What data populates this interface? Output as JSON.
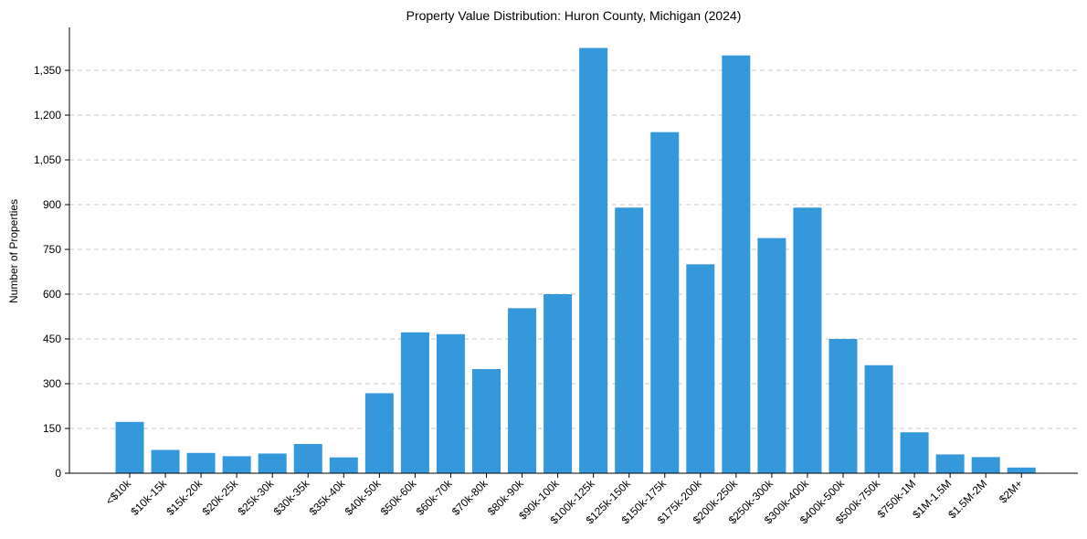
{
  "chart_data": {
    "type": "bar",
    "title": "Property Value Distribution: Huron County, Michigan (2024)",
    "xlabel": "",
    "ylabel": "Number of Properties",
    "ylim": [
      0,
      1500
    ],
    "yticks": [
      0,
      150,
      300,
      450,
      600,
      750,
      900,
      1050,
      1200,
      1350
    ],
    "ytick_labels": [
      "0",
      "150",
      "300",
      "450",
      "600",
      "750",
      "900",
      "1,050",
      "1,200",
      "1,350"
    ],
    "grid": "horizontal dashed",
    "bar_color": "#3498db",
    "categories": [
      "<$10k",
      "$10k-15k",
      "$15k-20k",
      "$20k-25k",
      "$25k-30k",
      "$30k-35k",
      "$35k-40k",
      "$40k-50k",
      "$50k-60k",
      "$60k-70k",
      "$70k-80k",
      "$80k-90k",
      "$90k-100k",
      "$100k-125k",
      "$125k-150k",
      "$150k-175k",
      "$175k-200k",
      "$200k-250k",
      "$250k-300k",
      "$300k-400k",
      "$400k-500k",
      "$500k-750k",
      "$750k-1M",
      "$1M-1.5M",
      "$1.5M-2M",
      "$2M+"
    ],
    "values": [
      172,
      78,
      68,
      57,
      66,
      98,
      53,
      268,
      472,
      466,
      349,
      553,
      600,
      1425,
      890,
      1143,
      700,
      1400,
      788,
      890,
      450,
      362,
      137,
      63,
      54,
      19
    ]
  }
}
